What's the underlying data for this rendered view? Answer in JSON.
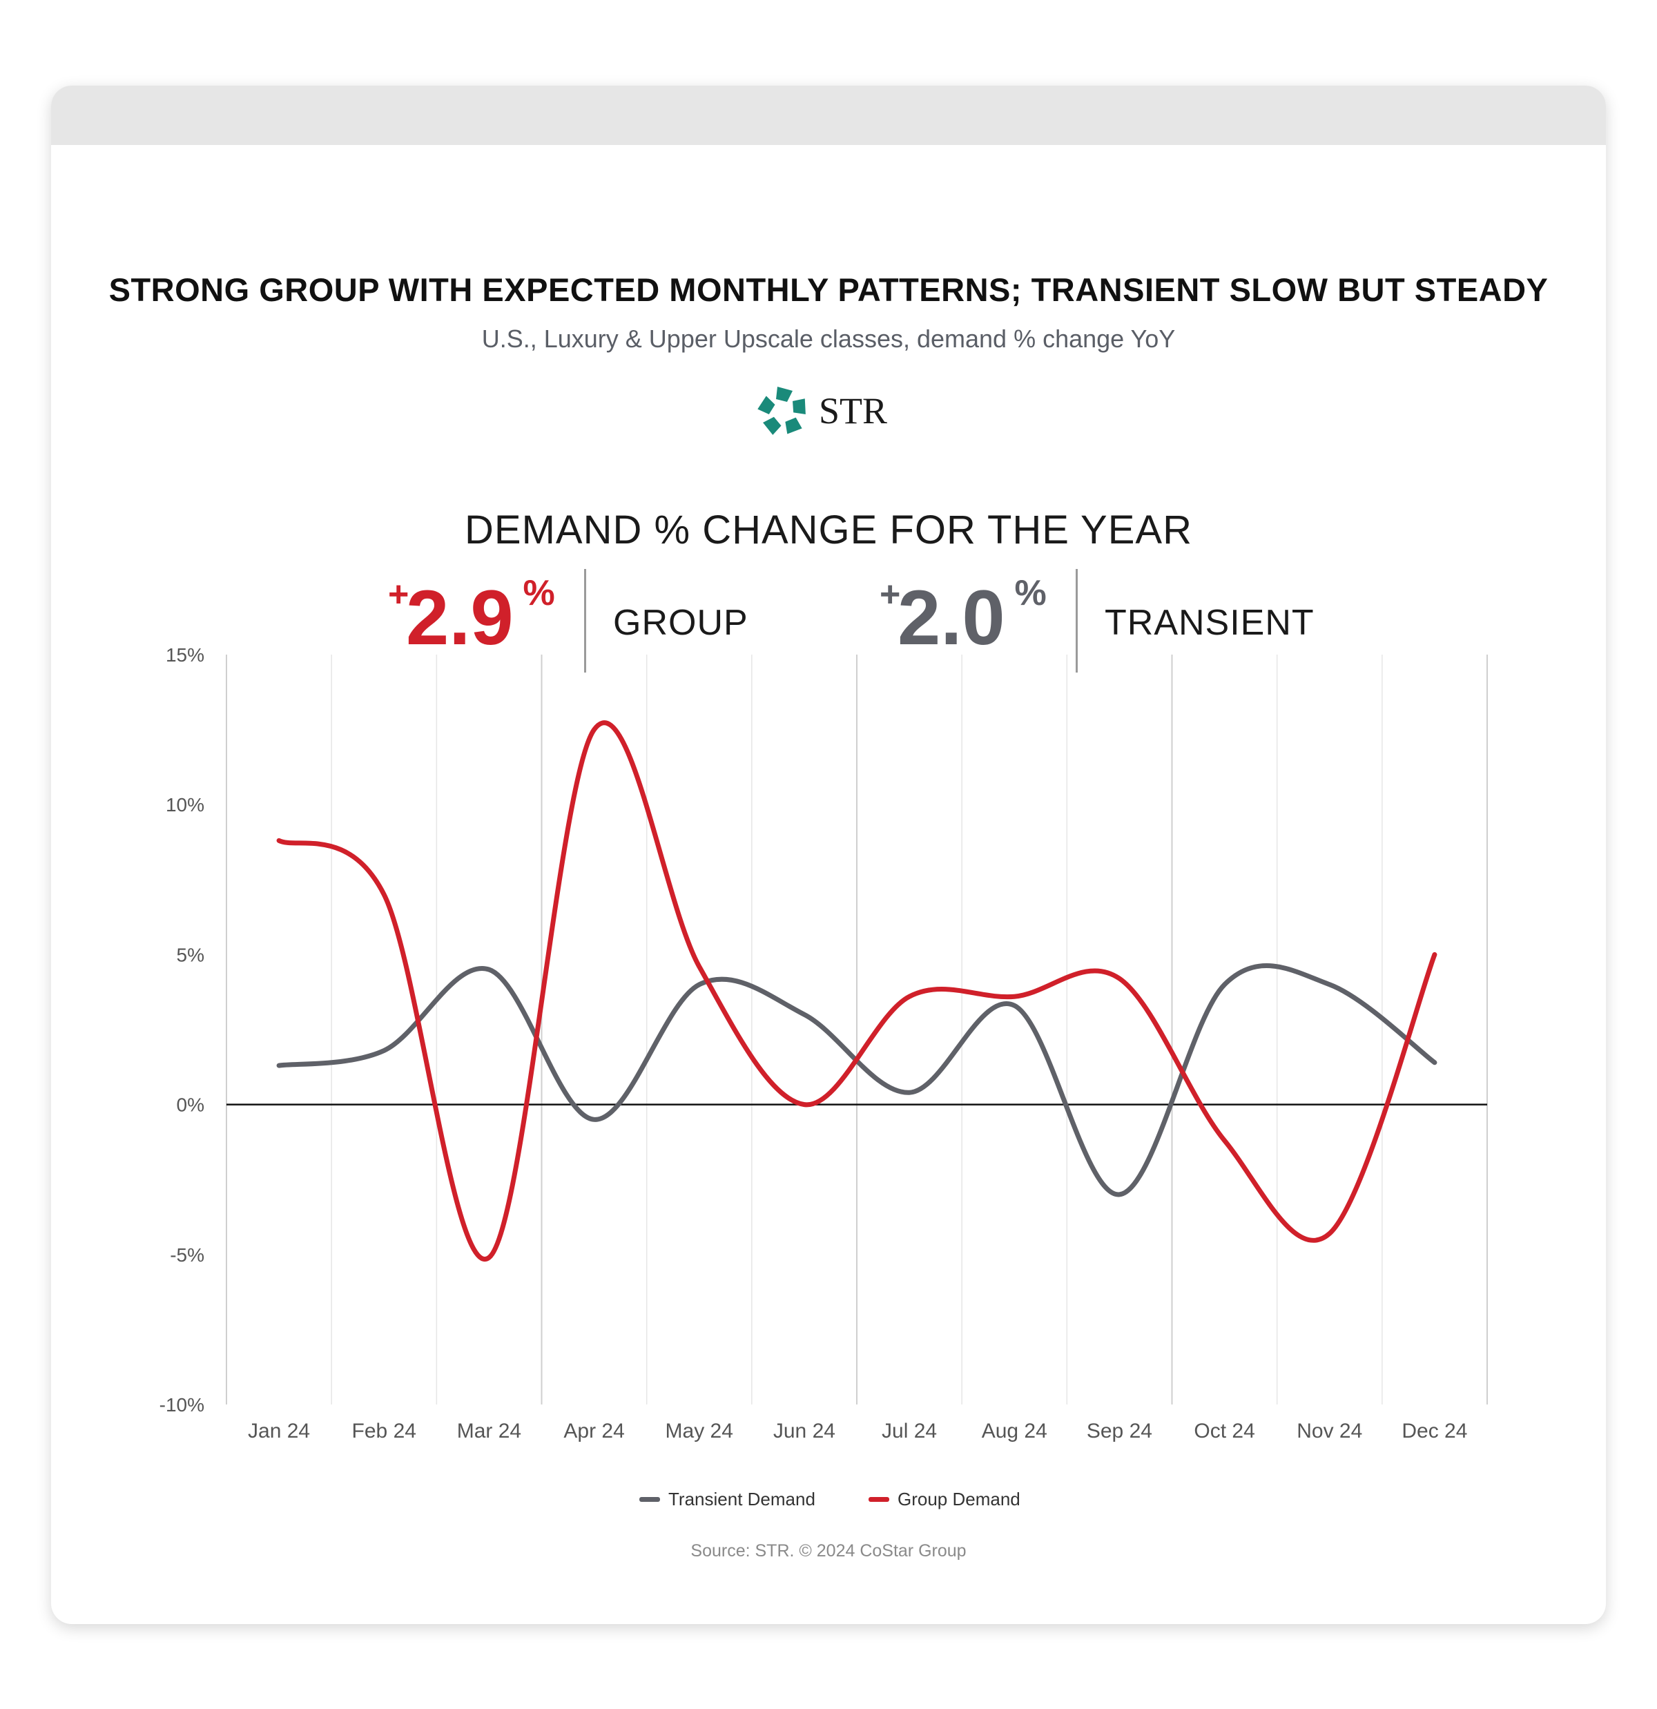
{
  "header": {
    "title": "STRONG GROUP WITH EXPECTED MONTHLY PATTERNS; TRANSIENT SLOW BUT STEADY",
    "subtitle": "U.S., Luxury & Upper Upscale classes, demand % change YoY",
    "logo_text": "STR"
  },
  "kpis": {
    "heading": "DEMAND % CHANGE FOR THE YEAR",
    "group": {
      "sign": "+",
      "value": "2.9",
      "unit": "%",
      "label": "GROUP",
      "color": "#d0202a"
    },
    "transient": {
      "sign": "+",
      "value": "2.0",
      "unit": "%",
      "label": "TRANSIENT",
      "color": "#5f6168"
    }
  },
  "chart_data": {
    "type": "line",
    "categories": [
      "Jan 24",
      "Feb 24",
      "Mar 24",
      "Apr 24",
      "May 24",
      "Jun 24",
      "Jul 24",
      "Aug 24",
      "Sep 24",
      "Oct 24",
      "Nov 24",
      "Dec 24"
    ],
    "series": [
      {
        "name": "Transient Demand",
        "color": "#5f6168",
        "values": [
          1.3,
          1.8,
          4.5,
          -0.5,
          4.0,
          3.0,
          0.4,
          3.3,
          -3.0,
          4.0,
          4.0,
          1.4
        ]
      },
      {
        "name": "Group Demand",
        "color": "#d0202a",
        "values": [
          8.8,
          7.0,
          -5.1,
          12.5,
          4.6,
          0.0,
          3.6,
          3.6,
          4.2,
          -1.2,
          -4.3,
          5.0
        ]
      }
    ],
    "ylim": [
      -10,
      15
    ],
    "yticks": [
      15,
      10,
      5,
      0,
      -5,
      -10
    ],
    "ytick_labels": [
      "15%",
      "10%",
      "5%",
      "0%",
      "-5%",
      "-10%"
    ],
    "xlabel": "",
    "ylabel": "",
    "grid": "vertical",
    "legend": "bottom-center"
  },
  "footer": {
    "source": "Source: STR. © 2024 CoStar Group"
  }
}
